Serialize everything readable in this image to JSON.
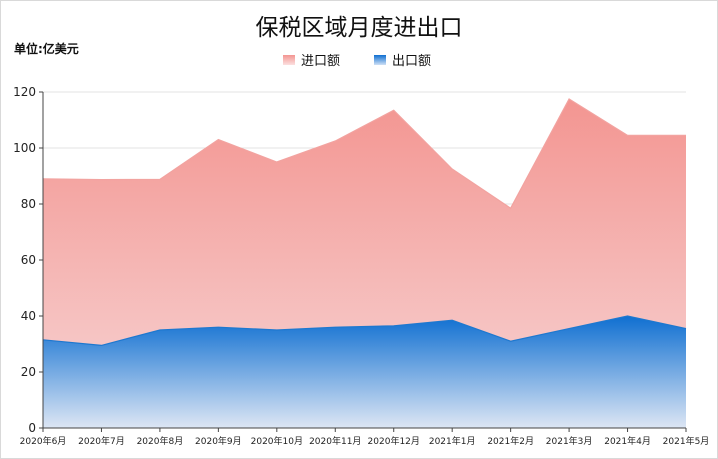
{
  "chart_data": {
    "type": "area",
    "title": "保税区域月度进出口",
    "unit_label": "单位:亿美元",
    "categories": [
      "2020年6月",
      "2020年7月",
      "2020年8月",
      "2020年9月",
      "2020年10月",
      "2020年11月",
      "2020年12月",
      "2021年1月",
      "2021年2月",
      "2021年3月",
      "2021年4月",
      "2021年5月"
    ],
    "series": [
      {
        "name": "进口额",
        "values": [
          89,
          88.7,
          88.8,
          103,
          95,
          102.5,
          113.5,
          92.5,
          78.5,
          117.5,
          104.5,
          104.5
        ],
        "color": "#f4a09c"
      },
      {
        "name": "出口额",
        "values": [
          31.5,
          29.5,
          35,
          36,
          35,
          36,
          36.5,
          38.5,
          31,
          35.5,
          40,
          35.5
        ],
        "color": "#1a77d2"
      }
    ],
    "ylim": [
      0,
      120
    ],
    "yticks": [
      0,
      20,
      40,
      60,
      80,
      100,
      120
    ],
    "grid": true,
    "legend_position": "top-center",
    "stacked": false
  }
}
